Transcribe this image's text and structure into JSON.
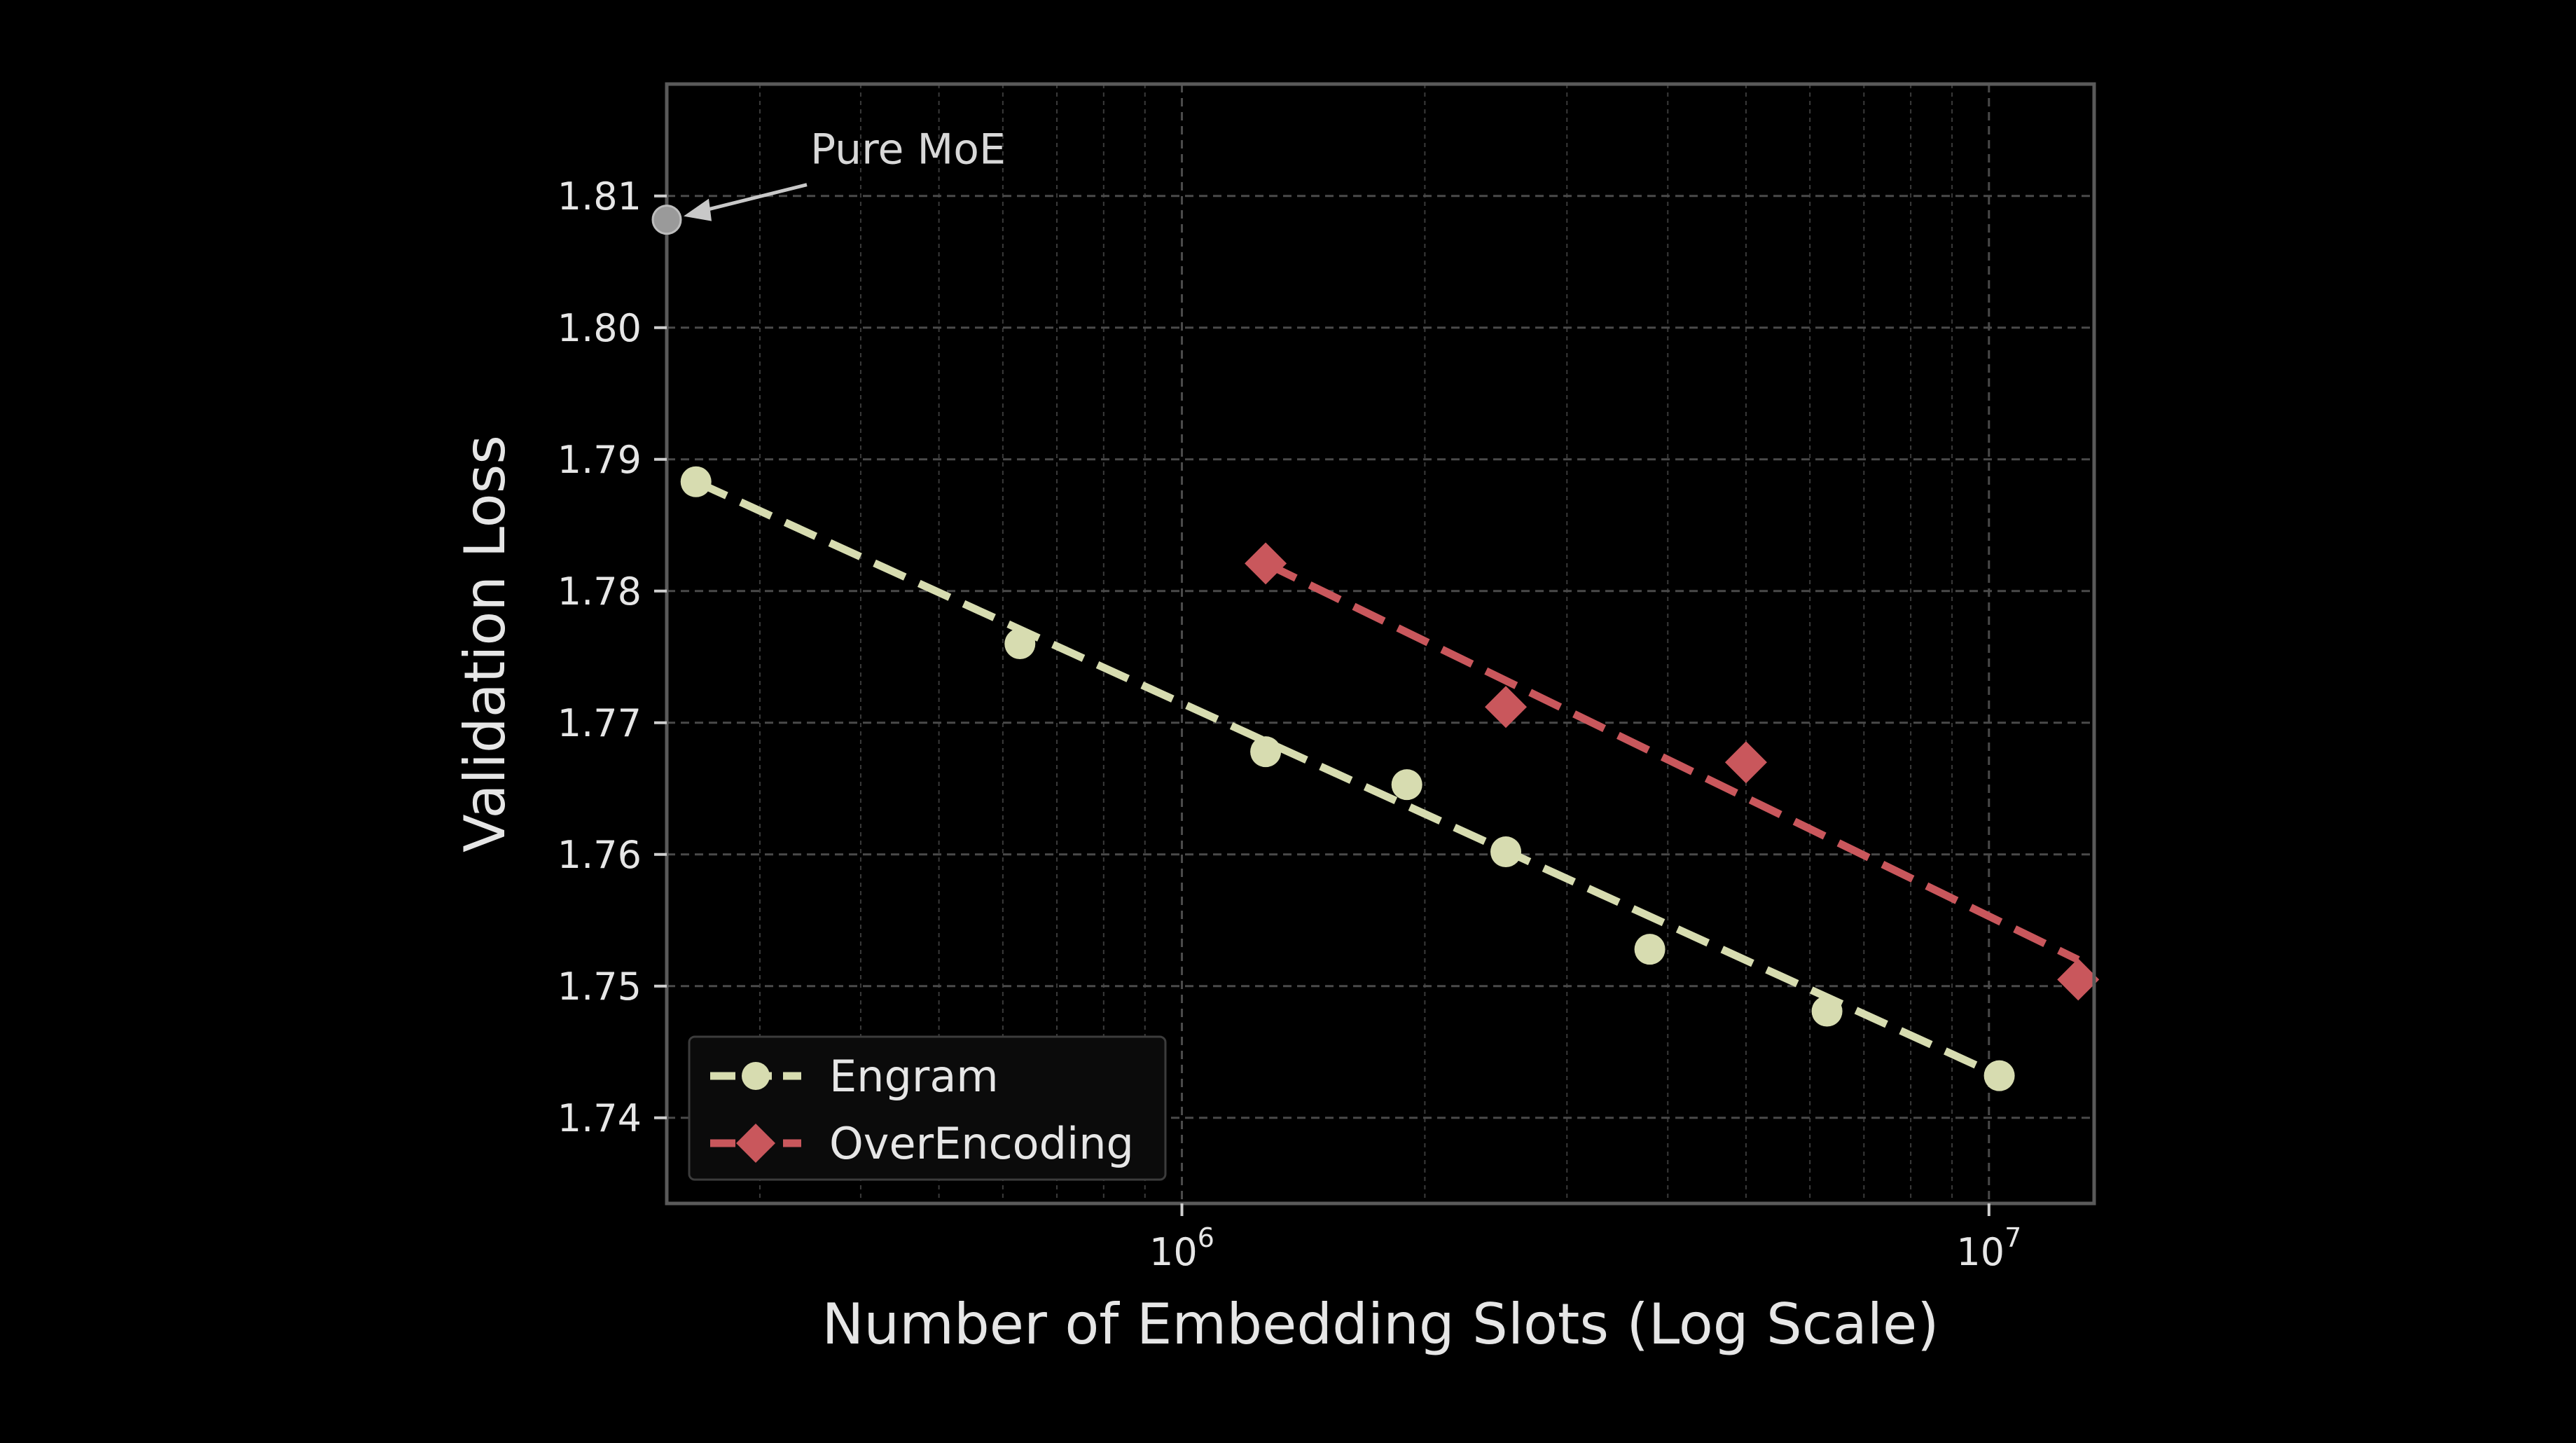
{
  "chart_data": {
    "type": "line",
    "title": "",
    "xlabel": "Number of Embedding Slots (Log Scale)",
    "ylabel": "Validation Loss",
    "x_scale": "log",
    "xlim": [
      230000,
      13500000
    ],
    "ylim": [
      1.7335,
      1.8185
    ],
    "x_ticks": [
      {
        "value": 1000000,
        "base": "10",
        "exp": "6"
      },
      {
        "value": 10000000,
        "base": "10",
        "exp": "7"
      }
    ],
    "y_ticks": [
      {
        "value": 1.74,
        "label": "1.74"
      },
      {
        "value": 1.75,
        "label": "1.75"
      },
      {
        "value": 1.76,
        "label": "1.76"
      },
      {
        "value": 1.77,
        "label": "1.77"
      },
      {
        "value": 1.78,
        "label": "1.78"
      },
      {
        "value": 1.79,
        "label": "1.79"
      },
      {
        "value": 1.8,
        "label": "1.80"
      },
      {
        "value": 1.81,
        "label": "1.81"
      }
    ],
    "grid": true,
    "legend_position": "lower-left",
    "series": [
      {
        "name": "Engram",
        "color": "#d7dcb0",
        "marker": "circle",
        "points": [
          {
            "x": 250000,
            "y": 1.7883
          },
          {
            "x": 630000,
            "y": 1.776
          },
          {
            "x": 1270000,
            "y": 1.7678
          },
          {
            "x": 1900000,
            "y": 1.7653
          },
          {
            "x": 2520000,
            "y": 1.7602
          },
          {
            "x": 3800000,
            "y": 1.7528
          },
          {
            "x": 6300000,
            "y": 1.7481
          },
          {
            "x": 10300000,
            "y": 1.7432
          }
        ],
        "trend": [
          {
            "x": 250000,
            "y": 1.7883
          },
          {
            "x": 10300000,
            "y": 1.7432
          }
        ]
      },
      {
        "name": "OverEncoding",
        "color": "#c9575c",
        "marker": "diamond",
        "points": [
          {
            "x": 1270000,
            "y": 1.7821
          },
          {
            "x": 2520000,
            "y": 1.7712
          },
          {
            "x": 5000000,
            "y": 1.767
          },
          {
            "x": 12900000,
            "y": 1.7505
          }
        ],
        "trend": [
          {
            "x": 1270000,
            "y": 1.7821
          },
          {
            "x": 12900000,
            "y": 1.752
          }
        ]
      }
    ],
    "annotations": [
      {
        "text": "Pure MoE",
        "point": {
          "x": 230000,
          "y": 1.8082
        },
        "color": "#9a9a9a"
      }
    ]
  }
}
